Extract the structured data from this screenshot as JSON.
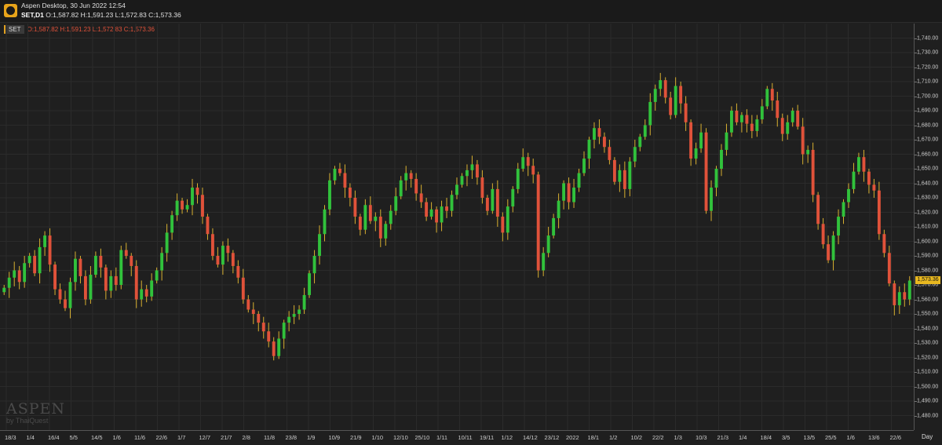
{
  "window": {
    "title": "Aspen Desktop, 30 Jun 2022 12:54",
    "symbol": "SET,D1",
    "ohlc": "O:1,587.82 H:1,591.23 L:1,572.83 C:1,573.36"
  },
  "panel": {
    "symbol_badge": "SET",
    "ohlc": "O:1,587.82 H:1,591.23 L:1,572.83 C:1,573.36"
  },
  "last_price_label": "1,573.36",
  "x_axis_unit": "Day",
  "watermark": {
    "brand": "ASPEN",
    "sub": "by ThaiQuest"
  },
  "colors": {
    "up": "#31c23c",
    "down": "#e0523a",
    "wick": "#d8b030",
    "grid": "#2b2b2b",
    "background": "#1f1f1f"
  },
  "chart_data": {
    "type": "candlestick",
    "series": "SET",
    "timeframe": "D1",
    "ylim": [
      1470,
      1750
    ],
    "y_ticks": [
      "1,480.00",
      "1,490.00",
      "1,500.00",
      "1,510.00",
      "1,520.00",
      "1,530.00",
      "1,540.00",
      "1,550.00",
      "1,560.00",
      "1,570.00",
      "1,580.00",
      "1,590.00",
      "1,600.00",
      "1,610.00",
      "1,620.00",
      "1,630.00",
      "1,640.00",
      "1,650.00",
      "1,660.00",
      "1,670.00",
      "1,680.00",
      "1,690.00",
      "1,700.00",
      "1,710.00",
      "1,720.00",
      "1,730.00",
      "1,740.00"
    ],
    "x_ticks": [
      "18/3",
      "1/4",
      "16/4",
      "5/5",
      "14/5",
      "1/6",
      "11/6",
      "22/6",
      "1/7",
      "12/7",
      "21/7",
      "2/8",
      "11/8",
      "23/8",
      "1/9",
      "10/9",
      "21/9",
      "1/10",
      "12/10",
      "25/10",
      "1/11",
      "10/11",
      "19/11",
      "1/12",
      "14/12",
      "23/12",
      "2022",
      "18/1",
      "1/2",
      "10/2",
      "22/2",
      "1/3",
      "10/3",
      "21/3",
      "1/4",
      "18/4",
      "3/5",
      "13/5",
      "25/5",
      "1/6",
      "13/6",
      "22/6"
    ],
    "last_close": 1573.36,
    "closes": [
      1568,
      1575,
      1580,
      1572,
      1585,
      1590,
      1578,
      1596,
      1604,
      1584,
      1567,
      1560,
      1554,
      1572,
      1588,
      1576,
      1560,
      1577,
      1590,
      1582,
      1566,
      1576,
      1570,
      1594,
      1590,
      1583,
      1560,
      1567,
      1562,
      1573,
      1580,
      1592,
      1606,
      1618,
      1628,
      1622,
      1625,
      1637,
      1632,
      1617,
      1605,
      1590,
      1584,
      1597,
      1592,
      1583,
      1575,
      1560,
      1553,
      1550,
      1544,
      1538,
      1531,
      1521,
      1533,
      1544,
      1548,
      1550,
      1553,
      1563,
      1578,
      1590,
      1605,
      1622,
      1642,
      1650,
      1647,
      1637,
      1630,
      1617,
      1608,
      1625,
      1614,
      1617,
      1602,
      1612,
      1621,
      1631,
      1642,
      1647,
      1643,
      1633,
      1627,
      1617,
      1622,
      1613,
      1624,
      1621,
      1632,
      1639,
      1645,
      1649,
      1653,
      1644,
      1630,
      1621,
      1636,
      1617,
      1606,
      1624,
      1636,
      1650,
      1658,
      1652,
      1646,
      1580,
      1592,
      1604,
      1616,
      1628,
      1640,
      1627,
      1637,
      1647,
      1657,
      1670,
      1678,
      1672,
      1665,
      1656,
      1641,
      1649,
      1636,
      1655,
      1665,
      1672,
      1680,
      1696,
      1705,
      1711,
      1699,
      1687,
      1707,
      1695,
      1682,
      1657,
      1664,
      1675,
      1621,
      1637,
      1650,
      1663,
      1675,
      1690,
      1682,
      1687,
      1681,
      1676,
      1684,
      1693,
      1705,
      1697,
      1685,
      1674,
      1682,
      1690,
      1679,
      1660,
      1663,
      1632,
      1612,
      1598,
      1587,
      1604,
      1617,
      1627,
      1636,
      1648,
      1658,
      1648,
      1639,
      1635,
      1605,
      1592,
      1571,
      1556,
      1565,
      1560,
      1573
    ]
  }
}
